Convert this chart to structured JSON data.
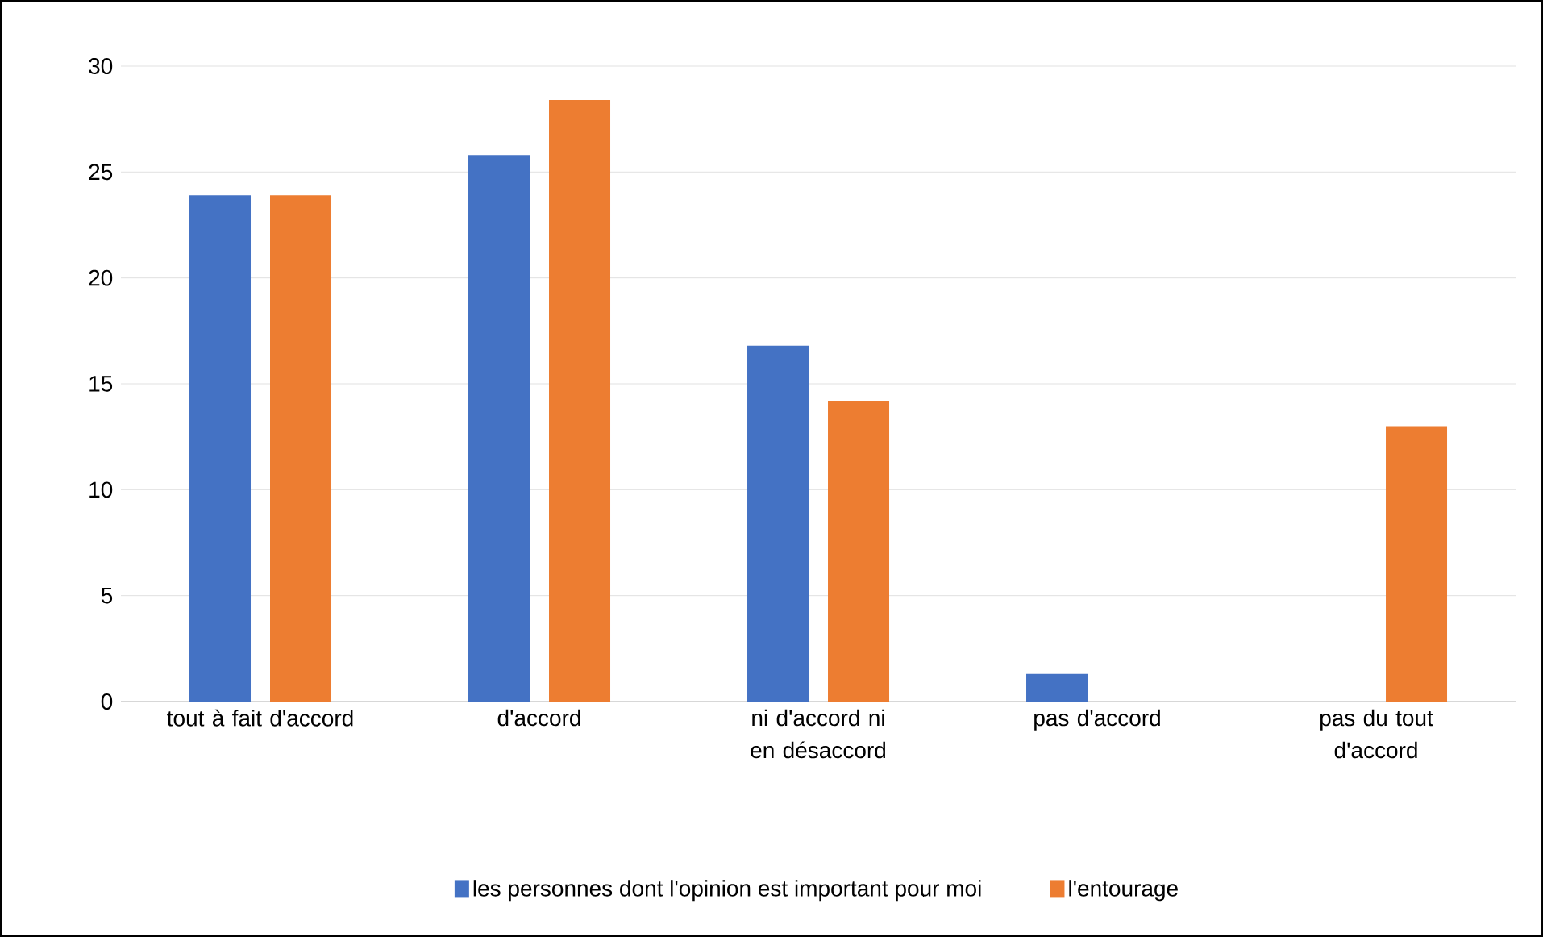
{
  "chart_data": {
    "type": "bar",
    "categories": [
      "tout à fait d'accord",
      "d'accord",
      "ni d'accord ni en désaccord",
      "pas d'accord",
      "pas du tout d'accord"
    ],
    "series": [
      {
        "name": "les personnes dont l'opinion est important pour moi",
        "color": "#4472c4",
        "values": [
          23.9,
          25.8,
          16.8,
          1.3,
          0
        ]
      },
      {
        "name": "l'entourage",
        "color": "#ed7d31",
        "values": [
          23.9,
          28.4,
          14.2,
          0,
          13.0
        ]
      }
    ],
    "ylim": [
      0,
      30
    ],
    "yticks": [
      0,
      5,
      10,
      15,
      20,
      25,
      30
    ],
    "grid": "y",
    "legend": "bottom"
  }
}
